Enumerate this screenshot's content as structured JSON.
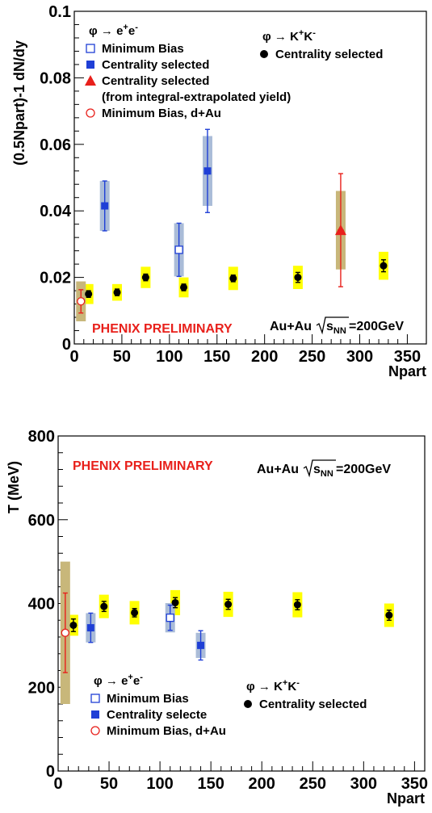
{
  "chart_data": [
    {
      "type": "scatter",
      "ylabel": "(0.5Npart)-1 dN/dy",
      "xlabel": "Npart",
      "xlim": [
        0,
        370
      ],
      "ylim": [
        0,
        0.1
      ],
      "xticks": [
        0,
        50,
        100,
        150,
        200,
        250,
        300,
        350
      ],
      "xtick_labels": [
        "0",
        "50",
        "100",
        "150",
        "200",
        "250",
        "300",
        "350"
      ],
      "yticks": [
        0,
        0.02,
        0.04,
        0.06,
        0.08,
        0.1
      ],
      "ytick_labels": [
        "0",
        "0.02",
        "0.04",
        "0.06",
        "0.08",
        "0.1"
      ],
      "annotation_preliminary": "PHENIX PRELIMINARY",
      "annotation_system": "Au+Au",
      "annotation_energy": "=200GeV",
      "group_labels": {
        "ee": "φ → e+e-",
        "kk": "φ → K+K-"
      },
      "group_ee_base": "φ → e",
      "group_kk_base": "φ → K",
      "series": [
        {
          "name": "Centrality selected",
          "group": "kk",
          "color": "#000000",
          "syst_color": "#ffff00",
          "marker": "circle",
          "points": [
            [
              15,
              0.015,
              0.001,
              0.003
            ],
            [
              45,
              0.0155,
              0.001,
              0.0025
            ],
            [
              75,
              0.02,
              0.001,
              0.0032
            ],
            [
              115,
              0.017,
              0.001,
              0.003
            ],
            [
              167,
              0.0197,
              0.001,
              0.0035
            ],
            [
              235,
              0.02,
              0.0015,
              0.0035
            ],
            [
              325,
              0.0235,
              0.0018,
              0.0042
            ]
          ]
        },
        {
          "name": "Minimum Bias",
          "group": "ee",
          "color": "#1f3fd6",
          "syst_color": "#aabcd8",
          "marker": "open-square",
          "points": [
            [
              110,
              0.0283,
              0.008,
              0.008
            ]
          ]
        },
        {
          "name": "Centrality selected",
          "group": "ee",
          "color": "#1f3fd6",
          "syst_color": "#aabcd8",
          "marker": "square",
          "points": [
            [
              32,
              0.0415,
              0.0075,
              0.0075
            ],
            [
              140,
              0.052,
              0.0125,
              0.0105
            ]
          ]
        },
        {
          "name": "Centrality selected",
          "subtitle": "(from integral-extrapolated yield)",
          "group": "ee",
          "color": "#e8201b",
          "syst_color": "#c8b77a",
          "marker": "triangle",
          "points": [
            [
              280,
              0.0342,
              0.017,
              0.0118
            ]
          ]
        },
        {
          "name": "Minimum Bias, d+Au",
          "group": "ee",
          "color": "#e8201b",
          "syst_color": "#c8b77a",
          "marker": "open-circle",
          "points": [
            [
              7,
              0.0128,
              0.0035,
              0.006
            ]
          ]
        }
      ]
    },
    {
      "type": "scatter",
      "ylabel": "T (MeV)",
      "xlabel": "Npart",
      "xlim": [
        0,
        360
      ],
      "ylim": [
        0,
        800
      ],
      "xticks": [
        0,
        50,
        100,
        150,
        200,
        250,
        300,
        350
      ],
      "xtick_labels": [
        "0",
        "50",
        "100",
        "150",
        "200",
        "250",
        "300",
        "350"
      ],
      "yticks": [
        0,
        200,
        400,
        600,
        800
      ],
      "ytick_labels": [
        "0",
        "200",
        "400",
        "600",
        "800"
      ],
      "annotation_preliminary": "PHENIX PRELIMINARY",
      "annotation_system": "Au+Au",
      "annotation_energy": "=200GeV",
      "group_labels": {
        "ee": "φ → e+e-",
        "kk": "φ → K+K-"
      },
      "group_ee_base": "φ → e",
      "group_kk_base": "φ → K",
      "series": [
        {
          "name": "Centrality selected",
          "group": "kk",
          "color": "#000000",
          "syst_color": "#ffff00",
          "marker": "circle",
          "points": [
            [
              15,
              348,
              15,
              25
            ],
            [
              45,
              393,
              12,
              28
            ],
            [
              75,
              378,
              10,
              28
            ],
            [
              115,
              402,
              12,
              30
            ],
            [
              167,
              398,
              12,
              30
            ],
            [
              235,
              397,
              12,
              30
            ],
            [
              325,
              372,
              12,
              28
            ]
          ]
        },
        {
          "name": "Minimum Bias",
          "group": "ee",
          "color": "#1f3fd6",
          "syst_color": "#aabcd8",
          "marker": "open-square",
          "points": [
            [
              110,
              366,
              30,
              35
            ]
          ]
        },
        {
          "name": "Centrality selecte",
          "group": "ee",
          "color": "#1f3fd6",
          "syst_color": "#aabcd8",
          "marker": "square",
          "points": [
            [
              32,
              342,
              35,
              35
            ],
            [
              140,
              300,
              35,
              30
            ]
          ]
        },
        {
          "name": "Minimum Bias, d+Au",
          "group": "ee",
          "color": "#e8201b",
          "syst_color": "#c8b77a",
          "marker": "open-circle",
          "points": [
            [
              7,
              330,
              95,
              170
            ]
          ]
        }
      ]
    }
  ]
}
